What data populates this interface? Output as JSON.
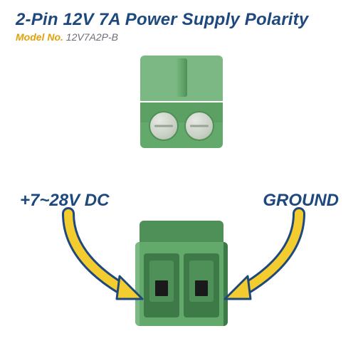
{
  "title": {
    "text": "2-Pin 12V 7A Power Supply Polarity",
    "color": "#1f497d",
    "fontsize": 24
  },
  "subtitle": {
    "label": "Model No. ",
    "label_color": "#e0a10b",
    "value": "12V7A2P-B",
    "value_color": "#6c6f76",
    "fontsize": 14
  },
  "labels": {
    "left": {
      "text": "+7~28V DC",
      "color": "#1f497d",
      "fontsize": 24
    },
    "right": {
      "text": "GROUND",
      "color": "#1f497d",
      "fontsize": 24
    }
  },
  "connector_colors": {
    "body": "#63a96b",
    "light": "#7cb884",
    "shadow": "#4f8f58",
    "dark": "#3e7a47",
    "screw_face": "#c9d0c4",
    "screw_slot": "#9aa398",
    "cavity_fill": "#3e7a47",
    "cavity_well": "#4f8f58",
    "terminal": "#1a1a1a"
  },
  "arrows": {
    "fill": "#f3cc30",
    "stroke": "#1f497d",
    "stroke_width": 3
  }
}
